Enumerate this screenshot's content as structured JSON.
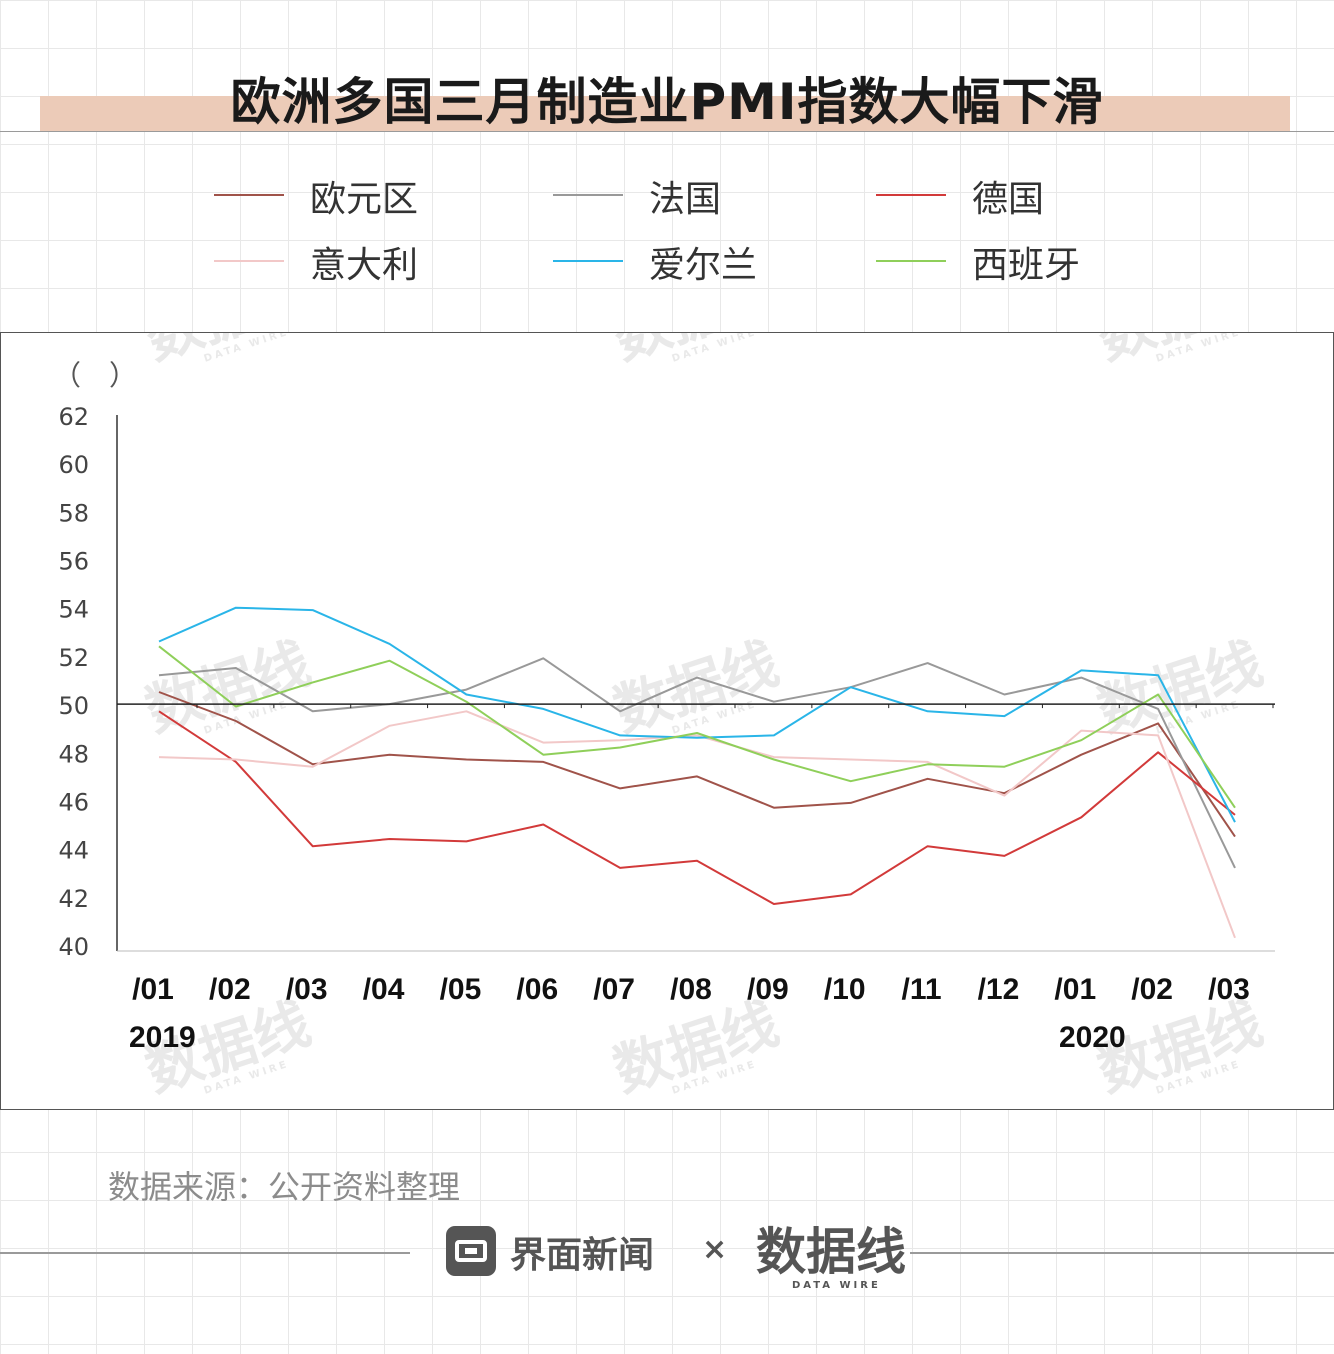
{
  "title": "欧洲多国三月制造业PMI指数大幅下滑",
  "source": "数据来源：公开资料整理",
  "footer": {
    "brand": "界面新闻",
    "separator": "×",
    "logo": "数据线",
    "logo_sub": "DATA WIRE"
  },
  "watermark": {
    "text": "数据线",
    "sub": "DATA WIRE"
  },
  "colors": {
    "axis": "#333333",
    "title_band": "#eccbb8"
  },
  "chart_data": {
    "type": "line",
    "title": "欧洲多国三月制造业PMI指数大幅下滑",
    "ylabel": "（　）",
    "ylim": [
      40,
      62
    ],
    "yticks": [
      "62",
      "60",
      "58",
      "56",
      "54",
      "52",
      "50",
      "48",
      "46",
      "44",
      "42",
      "40"
    ],
    "categories": [
      "/01",
      "/02",
      "/03",
      "/04",
      "/05",
      "/06",
      "/07",
      "/08",
      "/09",
      "/10",
      "/11",
      "/12",
      "/01",
      "/02",
      "/03"
    ],
    "year_labels": [
      "2019",
      "2020"
    ],
    "reference_line": 50,
    "legend_position": "top",
    "series": [
      {
        "name": "欧元区",
        "color": "#a0534a",
        "values": [
          50.5,
          49.3,
          47.5,
          47.9,
          47.7,
          47.6,
          46.5,
          47.0,
          45.7,
          45.9,
          46.9,
          46.3,
          47.9,
          49.2,
          44.5
        ]
      },
      {
        "name": "法国",
        "color": "#999999",
        "values": [
          51.2,
          51.5,
          49.7,
          50.0,
          50.6,
          51.9,
          49.7,
          51.1,
          50.1,
          50.7,
          51.7,
          50.4,
          51.1,
          49.8,
          43.2
        ]
      },
      {
        "name": "德国",
        "color": "#d23a3a",
        "values": [
          49.7,
          47.6,
          44.1,
          44.4,
          44.3,
          45.0,
          43.2,
          43.5,
          41.7,
          42.1,
          44.1,
          43.7,
          45.3,
          48.0,
          45.4
        ]
      },
      {
        "name": "意大利",
        "color": "#f2c8c8",
        "values": [
          47.8,
          47.7,
          47.4,
          49.1,
          49.7,
          48.4,
          48.5,
          48.7,
          47.8,
          47.7,
          47.6,
          46.2,
          48.9,
          48.7,
          40.3
        ]
      },
      {
        "name": "爱尔兰",
        "color": "#2ab5e8",
        "values": [
          52.6,
          54.0,
          53.9,
          52.5,
          50.4,
          49.8,
          48.7,
          48.6,
          48.7,
          50.7,
          49.7,
          49.5,
          51.4,
          51.2,
          45.1
        ]
      },
      {
        "name": "西班牙",
        "color": "#8fcf5a",
        "values": [
          52.4,
          49.9,
          50.9,
          51.8,
          50.1,
          47.9,
          48.2,
          48.8,
          47.7,
          46.8,
          47.5,
          47.4,
          48.5,
          50.4,
          45.7
        ]
      }
    ]
  }
}
